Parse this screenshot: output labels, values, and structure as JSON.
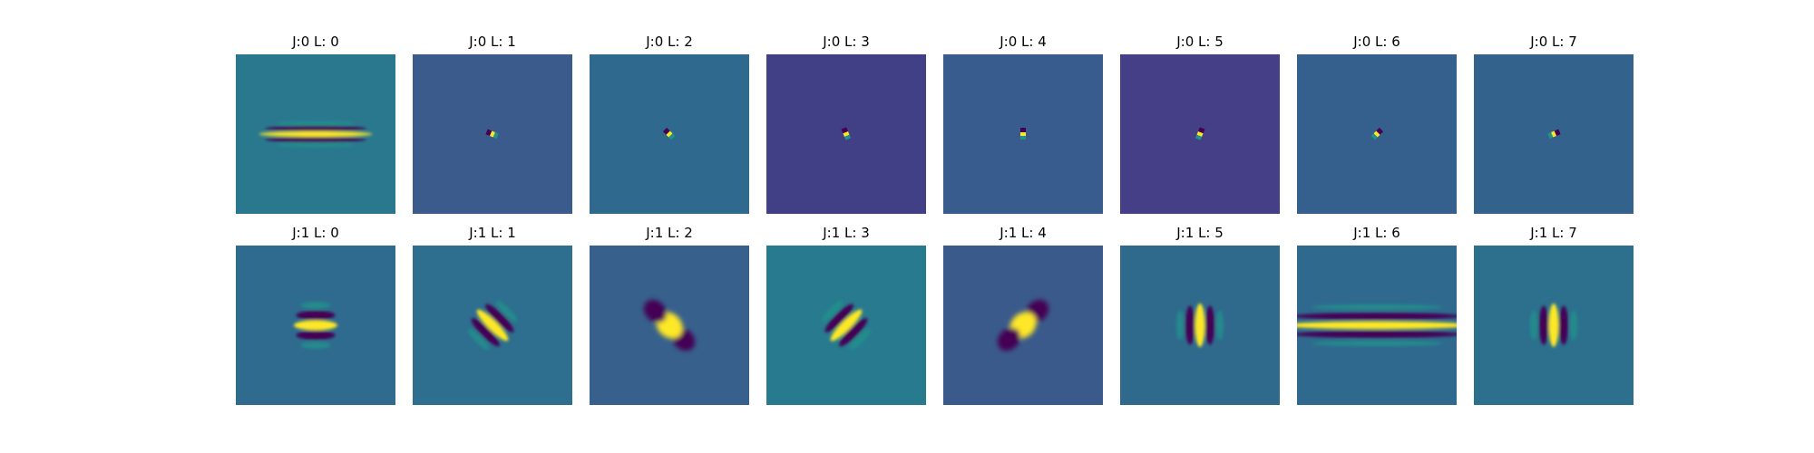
{
  "chart_data": {
    "type": "heatmap",
    "colormap": "viridis",
    "layout": "2 rows x 8 columns",
    "axes_visible": false,
    "panels": [
      {
        "title": "J:0 L: 0",
        "background": "#2a788e",
        "pattern": "horizontal-stripes",
        "orientation_deg": 0,
        "scale": "small"
      },
      {
        "title": "J:0 L: 1",
        "background": "#3b5b8c",
        "pattern": "point",
        "orientation_deg": 22.5,
        "scale": "tiny"
      },
      {
        "title": "J:0 L: 2",
        "background": "#30698e",
        "pattern": "point",
        "orientation_deg": 45,
        "scale": "tiny"
      },
      {
        "title": "J:0 L: 3",
        "background": "#413f85",
        "pattern": "point",
        "orientation_deg": 67.5,
        "scale": "tiny"
      },
      {
        "title": "J:0 L: 4",
        "background": "#375c8d",
        "pattern": "point",
        "orientation_deg": 90,
        "scale": "tiny"
      },
      {
        "title": "J:0 L: 5",
        "background": "#453f87",
        "pattern": "point",
        "orientation_deg": 112.5,
        "scale": "tiny"
      },
      {
        "title": "J:0 L: 6",
        "background": "#35608d",
        "pattern": "point",
        "orientation_deg": 135,
        "scale": "tiny"
      },
      {
        "title": "J:0 L: 7",
        "background": "#33628d",
        "pattern": "point",
        "orientation_deg": 157.5,
        "scale": "tiny"
      },
      {
        "title": "J:1 L: 0",
        "background": "#2f6b8e",
        "pattern": "horizontal-stripes",
        "orientation_deg": 0,
        "scale": "medium"
      },
      {
        "title": "J:1 L: 1",
        "background": "#2e6e8e",
        "pattern": "oriented-stripes",
        "orientation_deg": 45,
        "scale": "medium"
      },
      {
        "title": "J:1 L: 2",
        "background": "#37608d",
        "pattern": "blob",
        "orientation_deg": 135,
        "scale": "medium"
      },
      {
        "title": "J:1 L: 3",
        "background": "#287a8e",
        "pattern": "oriented-stripes",
        "orientation_deg": 135,
        "scale": "medium"
      },
      {
        "title": "J:1 L: 4",
        "background": "#3a5a8c",
        "pattern": "blob",
        "orientation_deg": 45,
        "scale": "medium"
      },
      {
        "title": "J:1 L: 5",
        "background": "#2f6a8d",
        "pattern": "vertical-stripes",
        "orientation_deg": 90,
        "scale": "medium"
      },
      {
        "title": "J:1 L: 6",
        "background": "#2f6a8e",
        "pattern": "horizontal-stripes",
        "orientation_deg": 0,
        "scale": "wide"
      },
      {
        "title": "J:1 L: 7",
        "background": "#2c708e",
        "pattern": "vertical-stripes",
        "orientation_deg": 90,
        "scale": "medium"
      }
    ]
  },
  "colors": {
    "bright": "#fde725",
    "mid": "#21918c",
    "dark": "#440154"
  }
}
